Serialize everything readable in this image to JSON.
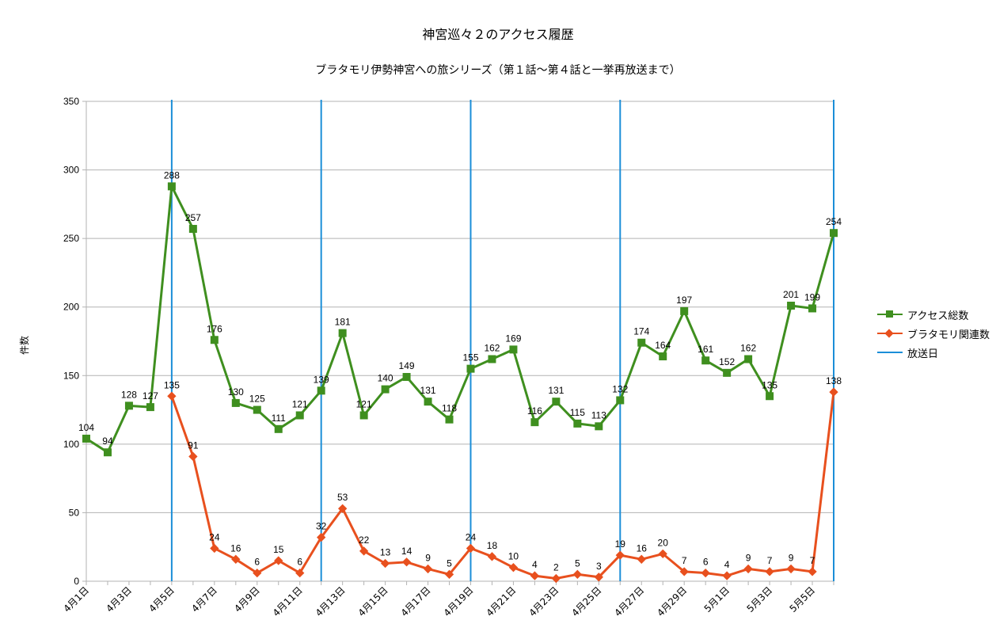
{
  "chart_data": {
    "type": "line",
    "title": "神宮巡々２のアクセス履歴",
    "subtitle": "ブラタモリ伊勢神宮への旅シリーズ（第１話～第４話と一挙再放送まで）",
    "ylabel": "件数",
    "ylim": [
      0,
      350
    ],
    "yticks": [
      0,
      50,
      100,
      150,
      200,
      250,
      300,
      350
    ],
    "grid": true,
    "legend_position": "right",
    "categories": [
      "4月1日",
      "4月2日",
      "4月3日",
      "4月4日",
      "4月5日",
      "4月6日",
      "4月7日",
      "4月8日",
      "4月9日",
      "4月10日",
      "4月11日",
      "4月12日",
      "4月13日",
      "4月14日",
      "4月15日",
      "4月16日",
      "4月17日",
      "4月18日",
      "4月19日",
      "4月20日",
      "4月21日",
      "4月22日",
      "4月23日",
      "4月24日",
      "4月25日",
      "4月26日",
      "4月27日",
      "4月28日",
      "4月29日",
      "4月30日",
      "5月1日",
      "5月2日",
      "5月3日",
      "5月4日",
      "5月5日",
      "5月6日"
    ],
    "x_tick_labels": [
      "4月1日",
      "4月3日",
      "4月5日",
      "4月7日",
      "4月9日",
      "4月11日",
      "4月13日",
      "4月15日",
      "4月17日",
      "4月19日",
      "4月21日",
      "4月23日",
      "4月25日",
      "4月27日",
      "4月29日",
      "5月1日",
      "5月3日",
      "5月5日"
    ],
    "series": [
      {
        "name": "アクセス総数",
        "color": "#3f8f1f",
        "marker": "square",
        "values": [
          104,
          94,
          128,
          127,
          288,
          257,
          176,
          130,
          125,
          111,
          121,
          139,
          181,
          121,
          140,
          149,
          131,
          118,
          155,
          162,
          169,
          116,
          131,
          115,
          113,
          132,
          174,
          164,
          197,
          161,
          152,
          162,
          135,
          201,
          199,
          254
        ]
      },
      {
        "name": "ブラタモリ関連数",
        "color": "#e8501e",
        "marker": "diamond",
        "values": [
          null,
          null,
          null,
          null,
          135,
          91,
          24,
          16,
          6,
          15,
          6,
          32,
          53,
          22,
          13,
          14,
          9,
          5,
          24,
          18,
          10,
          4,
          2,
          5,
          3,
          19,
          16,
          20,
          7,
          6,
          4,
          9,
          7,
          9,
          7,
          138
        ]
      }
    ],
    "broadcast": {
      "name": "放送日",
      "color": "#1b8ed8",
      "dates": [
        "4月5日",
        "4月12日",
        "4月19日",
        "4月26日",
        "5月6日"
      ]
    }
  }
}
